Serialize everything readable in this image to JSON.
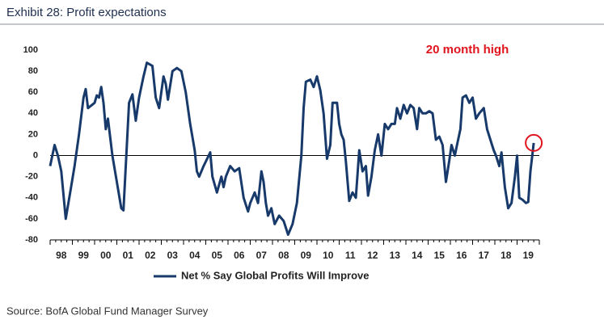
{
  "chart_data": {
    "type": "line",
    "title": "Exhibit 28: Profit expectations",
    "annotation": "20 month high",
    "source": "Source: BofA Global Fund Manager Survey",
    "x": [
      1998.0,
      1998.2,
      1998.35,
      1998.5,
      1998.7,
      1998.9,
      1999.1,
      1999.3,
      1999.5,
      1999.6,
      1999.7,
      2000.0,
      2000.1,
      2000.2,
      2000.3,
      2000.4,
      2000.5,
      2000.6,
      2000.8,
      2001.0,
      2001.2,
      2001.3,
      2001.45,
      2001.55,
      2001.7,
      2001.85,
      2002.0,
      2002.2,
      2002.35,
      2002.6,
      2002.75,
      2002.9,
      2003.1,
      2003.2,
      2003.3,
      2003.5,
      2003.7,
      2003.9,
      2004.1,
      2004.3,
      2004.5,
      2004.6,
      2004.7,
      2004.9,
      2005.2,
      2005.3,
      2005.5,
      2005.7,
      2005.8,
      2005.9,
      2006.1,
      2006.3,
      2006.5,
      2006.7,
      2006.9,
      2007.0,
      2007.2,
      2007.35,
      2007.5,
      2007.6,
      2007.7,
      2007.8,
      2007.95,
      2008.1,
      2008.3,
      2008.5,
      2008.7,
      2008.9,
      2009.1,
      2009.3,
      2009.4,
      2009.5,
      2009.7,
      2009.85,
      2010.0,
      2010.15,
      2010.3,
      2010.45,
      2010.6,
      2010.7,
      2010.9,
      2011.0,
      2011.1,
      2011.2,
      2011.3,
      2011.45,
      2011.6,
      2011.75,
      2011.9,
      2012.05,
      2012.2,
      2012.3,
      2012.45,
      2012.6,
      2012.75,
      2012.9,
      2013.05,
      2013.2,
      2013.35,
      2013.5,
      2013.6,
      2013.75,
      2013.9,
      2014.05,
      2014.2,
      2014.35,
      2014.5,
      2014.6,
      2014.75,
      2014.9,
      2015.05,
      2015.2,
      2015.35,
      2015.5,
      2015.65,
      2015.8,
      2015.95,
      2016.05,
      2016.2,
      2016.3,
      2016.45,
      2016.55,
      2016.7,
      2016.85,
      2017.0,
      2017.15,
      2017.3,
      2017.5,
      2017.65,
      2017.8,
      2017.95,
      2018.05,
      2018.2,
      2018.3,
      2018.45,
      2018.6,
      2018.75,
      2018.9,
      2019.0,
      2019.1,
      2019.25,
      2019.4,
      2019.5,
      2019.6,
      2019.75
    ],
    "series": [
      {
        "name": "Net % Say Global Profits Will Improve",
        "color": "#173a6b",
        "values": [
          -10,
          10,
          0,
          -15,
          -60,
          -35,
          -10,
          20,
          55,
          63,
          45,
          50,
          57,
          55,
          65,
          50,
          25,
          35,
          0,
          -25,
          -50,
          -52,
          10,
          50,
          58,
          33,
          55,
          75,
          88,
          85,
          55,
          45,
          75,
          68,
          53,
          80,
          83,
          80,
          60,
          30,
          5,
          -15,
          -20,
          -10,
          3,
          -20,
          -35,
          -20,
          -30,
          -20,
          -10,
          -15,
          -12,
          -40,
          -53,
          -45,
          -35,
          -45,
          -15,
          -25,
          -45,
          -57,
          -50,
          -65,
          -57,
          -62,
          -75,
          -65,
          -45,
          0,
          45,
          70,
          72,
          65,
          75,
          62,
          40,
          -3,
          10,
          50,
          50,
          30,
          20,
          15,
          -5,
          -43,
          -35,
          -40,
          5,
          -15,
          -10,
          -38,
          -20,
          5,
          20,
          0,
          30,
          25,
          30,
          30,
          45,
          35,
          48,
          40,
          48,
          45,
          25,
          45,
          40,
          40,
          42,
          40,
          15,
          18,
          10,
          -25,
          -5,
          10,
          0,
          10,
          25,
          55,
          57,
          50,
          55,
          35,
          40,
          45,
          25,
          15,
          5,
          0,
          -10,
          3,
          -30,
          -50,
          -45,
          -20,
          0,
          -40,
          -42,
          -45,
          -44,
          -15,
          12
        ]
      }
    ],
    "xlim": [
      1998,
      2020
    ],
    "xticks": [
      {
        "value": 1998.5,
        "label": "98"
      },
      {
        "value": 1999.5,
        "label": "99"
      },
      {
        "value": 2000.5,
        "label": "00"
      },
      {
        "value": 2001.5,
        "label": "01"
      },
      {
        "value": 2002.5,
        "label": "02"
      },
      {
        "value": 2003.5,
        "label": "03"
      },
      {
        "value": 2004.5,
        "label": "04"
      },
      {
        "value": 2005.5,
        "label": "05"
      },
      {
        "value": 2006.5,
        "label": "06"
      },
      {
        "value": 2007.5,
        "label": "07"
      },
      {
        "value": 2008.5,
        "label": "08"
      },
      {
        "value": 2009.5,
        "label": "09"
      },
      {
        "value": 2010.5,
        "label": "10"
      },
      {
        "value": 2011.5,
        "label": "11"
      },
      {
        "value": 2012.5,
        "label": "12"
      },
      {
        "value": 2013.5,
        "label": "13"
      },
      {
        "value": 2014.5,
        "label": "14"
      },
      {
        "value": 2015.5,
        "label": "15"
      },
      {
        "value": 2016.5,
        "label": "16"
      },
      {
        "value": 2017.5,
        "label": "17"
      },
      {
        "value": 2018.5,
        "label": "18"
      },
      {
        "value": 2019.5,
        "label": "19"
      }
    ],
    "ylim": [
      -80,
      100
    ],
    "yticks": [
      -80,
      -60,
      -40,
      -20,
      0,
      20,
      40,
      60,
      80,
      100
    ],
    "grid": false
  }
}
